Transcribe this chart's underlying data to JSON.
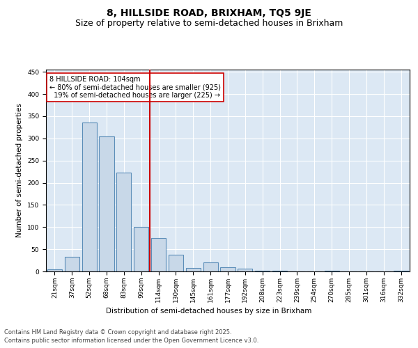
{
  "title_line1": "8, HILLSIDE ROAD, BRIXHAM, TQ5 9JE",
  "title_line2": "Size of property relative to semi-detached houses in Brixham",
  "xlabel": "Distribution of semi-detached houses by size in Brixham",
  "ylabel": "Number of semi-detached properties",
  "bar_labels": [
    "21sqm",
    "37sqm",
    "52sqm",
    "68sqm",
    "83sqm",
    "99sqm",
    "114sqm",
    "130sqm",
    "145sqm",
    "161sqm",
    "177sqm",
    "192sqm",
    "208sqm",
    "223sqm",
    "239sqm",
    "254sqm",
    "270sqm",
    "285sqm",
    "301sqm",
    "316sqm",
    "332sqm"
  ],
  "bar_values": [
    4,
    33,
    335,
    305,
    223,
    100,
    75,
    37,
    8,
    21,
    9,
    6,
    2,
    1,
    0,
    0,
    1,
    0,
    0,
    0,
    2
  ],
  "bar_color": "#c8d8e8",
  "bar_edge_color": "#5b8db8",
  "bar_linewidth": 0.8,
  "vline_x": 5.5,
  "vline_color": "#cc0000",
  "vline_linewidth": 1.5,
  "annotation_text": "8 HILLSIDE ROAD: 104sqm\n← 80% of semi-detached houses are smaller (925)\n  19% of semi-detached houses are larger (225) →",
  "annotation_box_color": "#ffffff",
  "annotation_box_edge": "#cc0000",
  "ylim": [
    0,
    455
  ],
  "yticks": [
    0,
    50,
    100,
    150,
    200,
    250,
    300,
    350,
    400,
    450
  ],
  "bg_color": "#dce8f4",
  "fig_bg_color": "#ffffff",
  "footnote1": "Contains HM Land Registry data © Crown copyright and database right 2025.",
  "footnote2": "Contains public sector information licensed under the Open Government Licence v3.0.",
  "title_fontsize": 10,
  "subtitle_fontsize": 9,
  "axis_label_fontsize": 7.5,
  "tick_fontsize": 6.5,
  "annotation_fontsize": 7,
  "footnote_fontsize": 6
}
